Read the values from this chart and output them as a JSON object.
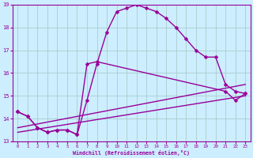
{
  "background_color": "#cceeff",
  "grid_color": "#aacccc",
  "line_color": "#990099",
  "xlim": [
    -0.5,
    23.5
  ],
  "ylim": [
    13,
    19
  ],
  "xlabel": "Windchill (Refroidissement éolien,°C)",
  "yticks": [
    13,
    14,
    15,
    16,
    17,
    18,
    19
  ],
  "xticks": [
    0,
    1,
    2,
    3,
    4,
    5,
    6,
    7,
    8,
    9,
    10,
    11,
    12,
    13,
    14,
    15,
    16,
    17,
    18,
    19,
    20,
    21,
    22,
    23
  ],
  "series": [
    {
      "x": [
        0,
        1,
        2,
        3,
        4,
        5,
        6,
        7,
        8,
        9,
        10,
        11,
        12,
        13,
        14,
        15,
        16,
        17,
        18,
        19,
        20,
        21,
        22,
        23
      ],
      "y": [
        14.3,
        14.1,
        13.6,
        13.4,
        13.5,
        13.5,
        13.3,
        14.8,
        16.4,
        17.8,
        18.7,
        18.85,
        19.0,
        18.85,
        18.7,
        18.4,
        18.0,
        17.5,
        17.0,
        16.7,
        16.7,
        15.5,
        15.2,
        15.1
      ],
      "has_marker": true,
      "markersize": 2.5,
      "linewidth": 1.0
    },
    {
      "x": [
        0,
        1,
        2,
        3,
        4,
        5,
        6,
        7,
        8,
        21,
        22,
        23
      ],
      "y": [
        14.3,
        14.1,
        13.6,
        13.4,
        13.5,
        13.5,
        13.3,
        16.4,
        16.5,
        15.2,
        14.8,
        15.1
      ],
      "has_marker": true,
      "markersize": 2.5,
      "linewidth": 1.0
    },
    {
      "x": [
        0,
        23
      ],
      "y": [
        13.6,
        15.5
      ],
      "has_marker": false,
      "markersize": 0,
      "linewidth": 1.0
    },
    {
      "x": [
        0,
        23
      ],
      "y": [
        13.4,
        15.0
      ],
      "has_marker": false,
      "markersize": 0,
      "linewidth": 1.0
    }
  ]
}
